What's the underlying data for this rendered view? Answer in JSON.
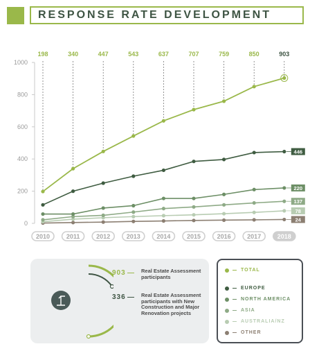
{
  "title": "RESPONSE RATE DEVELOPMENT",
  "colors": {
    "total": "#9ab84a",
    "europe": "#3f5c41",
    "north_america": "#6d8f66",
    "asia": "#8eaa86",
    "australia_nz": "#b8ccb2",
    "other": "#8c7f72",
    "axis_text": "#9a9a9a",
    "dark": "#3e5443"
  },
  "chart_data": {
    "type": "line",
    "x": [
      "2010",
      "2011",
      "2012",
      "2013",
      "2014",
      "2015",
      "2016",
      "2017",
      "2018"
    ],
    "ylim": [
      0,
      1000
    ],
    "yticks": [
      "0",
      "200",
      "400",
      "600",
      "800",
      "1000"
    ],
    "top_labels": [
      "198",
      "340",
      "447",
      "543",
      "637",
      "707",
      "759",
      "850",
      "903"
    ],
    "series": [
      {
        "name": "TOTAL",
        "values": [
          198,
          340,
          447,
          543,
          637,
          707,
          759,
          850,
          903
        ],
        "end_label": ""
      },
      {
        "name": "EUROPE",
        "values": [
          115,
          200,
          250,
          293,
          330,
          385,
          397,
          440,
          446
        ],
        "end_label": "446"
      },
      {
        "name": "NORTH AMERICA",
        "values": [
          58,
          58,
          95,
          110,
          155,
          155,
          180,
          210,
          220
        ],
        "end_label": "220"
      },
      {
        "name": "ASIA",
        "values": [
          22,
          42,
          50,
          70,
          92,
          102,
          115,
          127,
          137
        ],
        "end_label": "137"
      },
      {
        "name": "AUSTRALIA/NZ",
        "values": [
          10,
          26,
          35,
          42,
          48,
          53,
          60,
          68,
          78
        ],
        "end_label": "78"
      },
      {
        "name": "OTHER",
        "values": [
          2,
          5,
          8,
          12,
          15,
          18,
          20,
          22,
          24
        ],
        "end_label": "24"
      }
    ]
  },
  "info": {
    "stats": [
      {
        "value": "903",
        "text": "Real Estate Assessment participants"
      },
      {
        "value": "336",
        "text": "Real Estate Assessment participants with New Construction and Major Renovation projects"
      }
    ]
  },
  "legend": {
    "total": "TOTAL",
    "items": [
      "EUROPE",
      "NORTH AMERICA",
      "ASIA",
      "AUSTRALIA/NZ",
      "OTHER"
    ]
  }
}
